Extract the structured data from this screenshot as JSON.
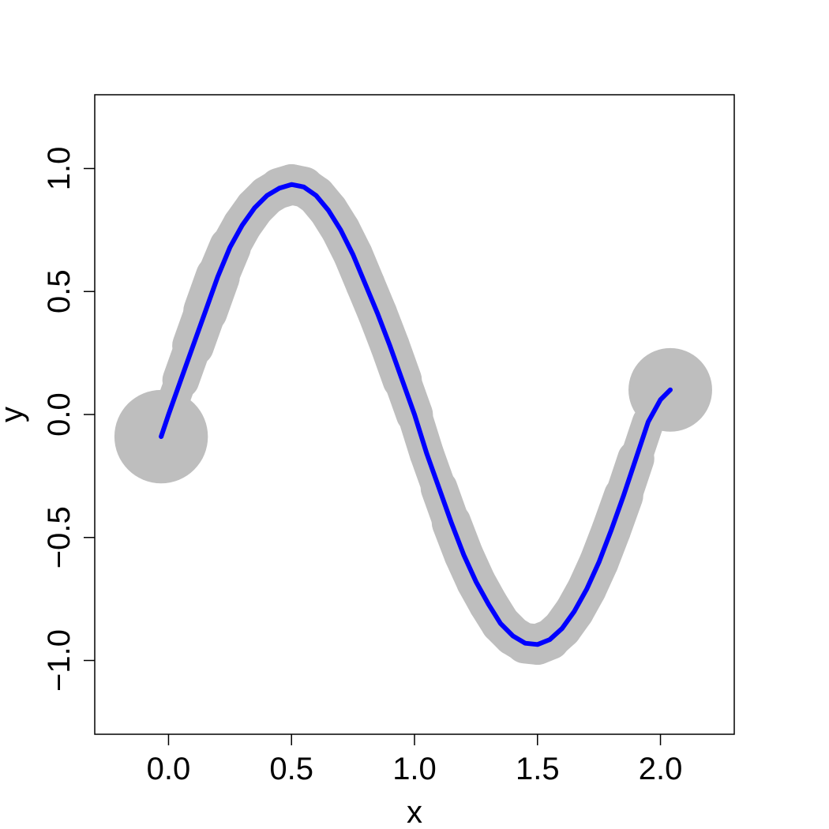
{
  "chart_data": {
    "type": "line",
    "title": "",
    "xlabel": "x",
    "ylabel": "y",
    "xlim": [
      -0.3,
      2.3
    ],
    "ylim": [
      -1.3,
      1.3
    ],
    "x_ticks": [
      0.0,
      0.5,
      1.0,
      1.5,
      2.0
    ],
    "x_tick_labels": [
      "0.0",
      "0.5",
      "1.0",
      "1.5",
      "2.0"
    ],
    "y_ticks": [
      -1.0,
      -0.5,
      0.0,
      0.5,
      1.0
    ],
    "y_tick_labels": [
      "−1.0",
      "−0.5",
      "0.0",
      "0.5",
      "1.0"
    ],
    "grid": false,
    "legend": "none",
    "series": [
      {
        "color": "#0000ff",
        "role": "curve",
        "x": [
          -0.03,
          0.0,
          0.05,
          0.1,
          0.15,
          0.2,
          0.25,
          0.3,
          0.35,
          0.4,
          0.45,
          0.5,
          0.55,
          0.6,
          0.65,
          0.7,
          0.75,
          0.8,
          0.85,
          0.9,
          0.95,
          1.0,
          1.05,
          1.1,
          1.15,
          1.2,
          1.25,
          1.3,
          1.35,
          1.4,
          1.45,
          1.5,
          1.55,
          1.6,
          1.65,
          1.7,
          1.75,
          1.8,
          1.85,
          1.9,
          1.95,
          2.0,
          2.04
        ],
        "y": [
          -0.09,
          0.0,
          0.14,
          0.28,
          0.42,
          0.56,
          0.68,
          0.77,
          0.84,
          0.89,
          0.92,
          0.935,
          0.925,
          0.89,
          0.83,
          0.75,
          0.65,
          0.53,
          0.41,
          0.28,
          0.14,
          0.0,
          -0.16,
          -0.3,
          -0.44,
          -0.57,
          -0.68,
          -0.77,
          -0.85,
          -0.9,
          -0.93,
          -0.935,
          -0.915,
          -0.87,
          -0.8,
          -0.71,
          -0.6,
          -0.47,
          -0.33,
          -0.18,
          -0.03,
          0.06,
          0.1
        ]
      },
      {
        "color": "#bebebe",
        "role": "band",
        "x": [
          -0.03,
          0.0,
          0.05,
          0.1,
          0.15,
          0.2,
          0.25,
          0.3,
          0.35,
          0.4,
          0.45,
          0.5,
          0.55,
          0.6,
          0.65,
          0.7,
          0.75,
          0.8,
          0.85,
          0.9,
          0.95,
          1.0,
          1.05,
          1.1,
          1.15,
          1.2,
          1.25,
          1.3,
          1.35,
          1.4,
          1.45,
          1.5,
          1.55,
          1.6,
          1.65,
          1.7,
          1.75,
          1.8,
          1.85,
          1.9,
          1.95,
          2.0,
          2.04
        ],
        "y": [
          -0.09,
          0.0,
          0.14,
          0.28,
          0.42,
          0.56,
          0.68,
          0.77,
          0.84,
          0.89,
          0.92,
          0.935,
          0.925,
          0.89,
          0.83,
          0.75,
          0.65,
          0.53,
          0.41,
          0.28,
          0.14,
          0.0,
          -0.16,
          -0.3,
          -0.44,
          -0.57,
          -0.68,
          -0.77,
          -0.85,
          -0.9,
          -0.93,
          -0.935,
          -0.915,
          -0.87,
          -0.8,
          -0.71,
          -0.6,
          -0.47,
          -0.33,
          -0.18,
          -0.03,
          0.06,
          0.1
        ],
        "halfwidth": [
          0.05,
          0.06,
          0.07,
          0.08,
          0.09,
          0.09,
          0.08,
          0.08,
          0.08,
          0.08,
          0.08,
          0.085,
          0.08,
          0.08,
          0.08,
          0.08,
          0.08,
          0.08,
          0.08,
          0.08,
          0.08,
          0.07,
          0.07,
          0.07,
          0.08,
          0.08,
          0.08,
          0.08,
          0.08,
          0.08,
          0.08,
          0.085,
          0.08,
          0.08,
          0.08,
          0.08,
          0.08,
          0.08,
          0.08,
          0.07,
          0.06,
          0.05,
          0.05
        ]
      },
      {
        "color": "#bebebe",
        "role": "endpoints",
        "x": [
          -0.03,
          2.04
        ],
        "y": [
          -0.09,
          0.1
        ],
        "radius": [
          0.19,
          0.17
        ]
      }
    ]
  }
}
